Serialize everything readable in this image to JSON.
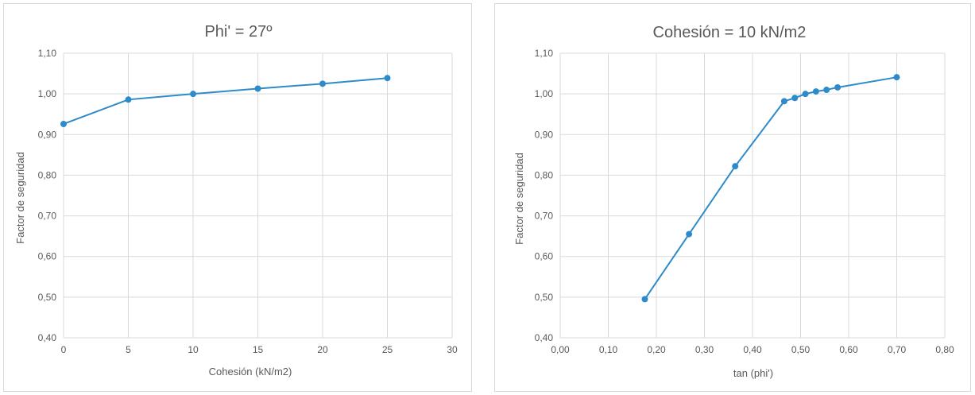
{
  "chart_data": [
    {
      "type": "line",
      "title": "Phi' = 27º",
      "xlabel": "Cohesión (kN/m2)",
      "ylabel": "Factor de seguridad",
      "xlim": [
        0,
        30
      ],
      "ylim": [
        0.4,
        1.1
      ],
      "x_ticks": [
        0,
        5,
        10,
        15,
        20,
        25,
        30
      ],
      "x_tick_labels": [
        "0",
        "5",
        "10",
        "15",
        "20",
        "25",
        "30"
      ],
      "y_ticks": [
        0.4,
        0.5,
        0.6,
        0.7,
        0.8,
        0.9,
        1.0,
        1.1
      ],
      "y_tick_labels": [
        "0,40",
        "0,50",
        "0,60",
        "0,70",
        "0,80",
        "0,90",
        "1,00",
        "1,10"
      ],
      "grid": true,
      "legend": "none",
      "series": [
        {
          "x": [
            0,
            5,
            10,
            15,
            20,
            25
          ],
          "y": [
            0.926,
            0.986,
            1.0,
            1.013,
            1.025,
            1.039
          ]
        }
      ]
    },
    {
      "type": "line",
      "title": "Cohesión = 10 kN/m2",
      "xlabel": "tan (phi')",
      "ylabel": "Factor de seguridad",
      "xlim": [
        0,
        0.8
      ],
      "ylim": [
        0.4,
        1.1
      ],
      "x_ticks": [
        0,
        0.1,
        0.2,
        0.3,
        0.4,
        0.5,
        0.6,
        0.7,
        0.8
      ],
      "x_tick_labels": [
        "0,00",
        "0,10",
        "0,20",
        "0,30",
        "0,40",
        "0,50",
        "0,60",
        "0,70",
        "0,80"
      ],
      "y_ticks": [
        0.4,
        0.5,
        0.6,
        0.7,
        0.8,
        0.9,
        1.0,
        1.1
      ],
      "y_tick_labels": [
        "0,40",
        "0,50",
        "0,60",
        "0,70",
        "0,80",
        "0,90",
        "1,00",
        "1,10"
      ],
      "grid": true,
      "legend": "none",
      "series": [
        {
          "x": [
            0.176,
            0.268,
            0.364,
            0.466,
            0.488,
            0.51,
            0.532,
            0.554,
            0.577,
            0.7
          ],
          "y": [
            0.495,
            0.655,
            0.822,
            0.982,
            0.99,
            1.0,
            1.006,
            1.01,
            1.016,
            1.041
          ]
        }
      ]
    }
  ],
  "style": {
    "line_color": "#2e8bc9",
    "grid_color": "#d9d9d9",
    "text_color": "#595959"
  }
}
